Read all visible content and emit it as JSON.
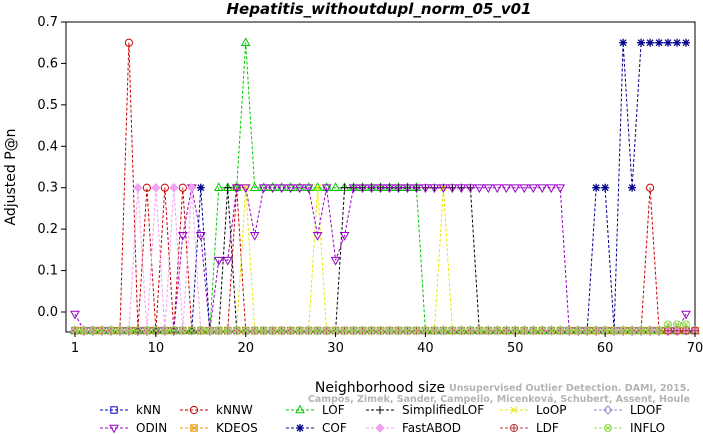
{
  "chart_data": {
    "type": "line",
    "title": "Hepatitis_withoutdupl_norm_05_v01",
    "xlabel": "Neighborhood size",
    "ylabel": "Adjusted P@n",
    "xlim": [
      0,
      70
    ],
    "ylim": [
      -0.05,
      0.7
    ],
    "xticks": [
      1,
      10,
      20,
      30,
      40,
      50,
      60,
      70
    ],
    "yticks": [
      0.0,
      0.1,
      0.2,
      0.3,
      0.4,
      0.5,
      0.6,
      0.7
    ],
    "ytick_labels": [
      "0.0",
      "0.1",
      "0.2",
      "0.3",
      "0.4",
      "0.5",
      "0.6",
      "0.7"
    ],
    "grid": false,
    "legend_position": "bottom",
    "watermark": {
      "line1": "Unsupervised Outlier Detection. DAMI, 2015.",
      "line2": "Campos, Zimek, Sander, Campello, Micenková, Schubert, Assent, Houle"
    },
    "series": [
      {
        "name": "kNN",
        "color": "#0000c8",
        "marker": "square",
        "points": [
          [
            1,
            -0.045
          ],
          [
            70,
            -0.045
          ]
        ]
      },
      {
        "name": "kNNW",
        "color": "#c80000",
        "marker": "circle",
        "points": [
          [
            1,
            -0.045
          ],
          [
            6,
            -0.045
          ],
          [
            7,
            0.65
          ],
          [
            8,
            -0.045
          ],
          [
            9,
            0.3
          ],
          [
            10,
            -0.045
          ],
          [
            11,
            0.3
          ],
          [
            12,
            -0.045
          ],
          [
            13,
            0.3
          ],
          [
            14,
            -0.045
          ],
          [
            15,
            -0.045
          ],
          [
            16,
            -0.045
          ],
          [
            17,
            -0.045
          ],
          [
            18,
            -0.045
          ],
          [
            19,
            0.3
          ],
          [
            20,
            -0.045
          ],
          [
            64,
            -0.045
          ],
          [
            65,
            0.3
          ],
          [
            66,
            -0.045
          ],
          [
            70,
            -0.045
          ]
        ]
      },
      {
        "name": "LOF",
        "color": "#00c800",
        "marker": "triangle-up",
        "points": [
          [
            1,
            -0.045
          ],
          [
            16,
            -0.045
          ],
          [
            17,
            0.3
          ],
          [
            18,
            0.3
          ],
          [
            19,
            0.3
          ],
          [
            20,
            0.65
          ],
          [
            21,
            0.3
          ],
          [
            22,
            0.3
          ],
          [
            23,
            0.3
          ],
          [
            24,
            0.3
          ],
          [
            25,
            0.3
          ],
          [
            26,
            0.3
          ],
          [
            27,
            0.3
          ],
          [
            28,
            0.3
          ],
          [
            29,
            0.3
          ],
          [
            30,
            0.3
          ],
          [
            31,
            0.3
          ],
          [
            32,
            0.3
          ],
          [
            33,
            0.3
          ],
          [
            34,
            0.3
          ],
          [
            35,
            0.3
          ],
          [
            36,
            0.3
          ],
          [
            37,
            0.3
          ],
          [
            38,
            0.3
          ],
          [
            39,
            0.3
          ],
          [
            40,
            -0.045
          ],
          [
            70,
            -0.045
          ]
        ]
      },
      {
        "name": "SimplifiedLOF",
        "color": "#000000",
        "marker": "plus",
        "points": [
          [
            1,
            -0.045
          ],
          [
            17,
            -0.045
          ],
          [
            18,
            0.3
          ],
          [
            19,
            -0.045
          ],
          [
            30,
            -0.045
          ],
          [
            31,
            0.3
          ],
          [
            32,
            0.3
          ],
          [
            33,
            0.3
          ],
          [
            34,
            0.3
          ],
          [
            35,
            0.3
          ],
          [
            36,
            0.3
          ],
          [
            37,
            0.3
          ],
          [
            38,
            0.3
          ],
          [
            39,
            0.3
          ],
          [
            40,
            0.3
          ],
          [
            41,
            0.3
          ],
          [
            42,
            0.3
          ],
          [
            43,
            0.3
          ],
          [
            44,
            0.3
          ],
          [
            45,
            0.3
          ],
          [
            46,
            -0.045
          ],
          [
            70,
            -0.045
          ]
        ]
      },
      {
        "name": "LoOP",
        "color": "#e6e600",
        "marker": "x",
        "points": [
          [
            1,
            -0.045
          ],
          [
            19,
            -0.045
          ],
          [
            20,
            0.3
          ],
          [
            21,
            -0.045
          ],
          [
            27,
            -0.045
          ],
          [
            28,
            0.3
          ],
          [
            29,
            -0.045
          ],
          [
            41,
            -0.045
          ],
          [
            42,
            0.3
          ],
          [
            43,
            -0.045
          ],
          [
            70,
            -0.045
          ]
        ]
      },
      {
        "name": "LDOF",
        "color": "#8c8cdc",
        "marker": "diamond",
        "points": [
          [
            1,
            -0.045
          ],
          [
            70,
            -0.045
          ]
        ]
      },
      {
        "name": "ODIN",
        "color": "#9600c8",
        "marker": "triangle-down",
        "points": [
          [
            1,
            -0.005
          ],
          [
            2,
            -0.045
          ],
          [
            12,
            -0.045
          ],
          [
            13,
            0.185
          ],
          [
            14,
            0.3
          ],
          [
            15,
            0.185
          ],
          [
            16,
            -0.045
          ],
          [
            17,
            0.125
          ],
          [
            18,
            0.125
          ],
          [
            19,
            0.3
          ],
          [
            20,
            0.3
          ],
          [
            21,
            0.185
          ],
          [
            22,
            0.3
          ],
          [
            23,
            0.3
          ],
          [
            24,
            0.3
          ],
          [
            25,
            0.3
          ],
          [
            26,
            0.3
          ],
          [
            27,
            0.3
          ],
          [
            28,
            0.185
          ],
          [
            29,
            0.3
          ],
          [
            30,
            0.125
          ],
          [
            31,
            0.185
          ],
          [
            32,
            0.3
          ],
          [
            33,
            0.3
          ],
          [
            34,
            0.3
          ],
          [
            35,
            0.3
          ],
          [
            36,
            0.3
          ],
          [
            37,
            0.3
          ],
          [
            38,
            0.3
          ],
          [
            39,
            0.3
          ],
          [
            40,
            0.3
          ],
          [
            41,
            0.3
          ],
          [
            42,
            0.3
          ],
          [
            43,
            0.3
          ],
          [
            44,
            0.3
          ],
          [
            45,
            0.3
          ],
          [
            46,
            0.3
          ],
          [
            47,
            0.3
          ],
          [
            48,
            0.3
          ],
          [
            49,
            0.3
          ],
          [
            50,
            0.3
          ],
          [
            51,
            0.3
          ],
          [
            52,
            0.3
          ],
          [
            53,
            0.3
          ],
          [
            54,
            0.3
          ],
          [
            55,
            0.3
          ],
          [
            56,
            -0.045
          ],
          [
            68,
            -0.045
          ],
          [
            69,
            -0.005
          ]
        ]
      },
      {
        "name": "KDEOS",
        "color": "#e69600",
        "marker": "square-x",
        "points": [
          [
            1,
            -0.045
          ],
          [
            70,
            -0.045
          ]
        ]
      },
      {
        "name": "COF",
        "color": "#00008c",
        "marker": "asterisk",
        "points": [
          [
            1,
            -0.045
          ],
          [
            14,
            -0.045
          ],
          [
            15,
            0.3
          ],
          [
            16,
            -0.045
          ],
          [
            58,
            -0.045
          ],
          [
            59,
            0.3
          ],
          [
            60,
            0.3
          ],
          [
            61,
            -0.045
          ],
          [
            62,
            0.65
          ],
          [
            63,
            0.3
          ],
          [
            64,
            0.65
          ],
          [
            65,
            0.65
          ],
          [
            66,
            0.65
          ],
          [
            67,
            0.65
          ],
          [
            68,
            0.65
          ],
          [
            69,
            0.65
          ]
        ]
      },
      {
        "name": "FastABOD",
        "color": "#f0a0f0",
        "marker": "diamond-filled",
        "points": [
          [
            1,
            -0.045
          ],
          [
            7,
            -0.045
          ],
          [
            8,
            0.3
          ],
          [
            9,
            -0.045
          ],
          [
            10,
            0.3
          ],
          [
            11,
            -0.045
          ],
          [
            12,
            0.3
          ],
          [
            13,
            -0.045
          ],
          [
            14,
            0.3
          ],
          [
            15,
            -0.045
          ],
          [
            70,
            -0.045
          ]
        ]
      },
      {
        "name": "LDF",
        "color": "#b43c3c",
        "marker": "circle-plus",
        "points": [
          [
            1,
            -0.045
          ],
          [
            70,
            -0.045
          ]
        ]
      },
      {
        "name": "INFLO",
        "color": "#96dc50",
        "marker": "circle-x",
        "points": [
          [
            1,
            -0.045
          ],
          [
            66,
            -0.045
          ],
          [
            67,
            -0.03
          ],
          [
            68,
            -0.03
          ],
          [
            69,
            -0.03
          ]
        ]
      }
    ]
  }
}
